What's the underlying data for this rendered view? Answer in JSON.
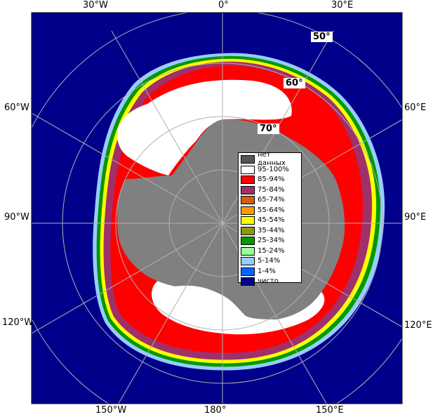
{
  "map": {
    "lon_labels_top": [
      "30°W",
      "0°",
      "30°E"
    ],
    "lon_labels_left": [
      "60°W",
      "90°W",
      "120°W"
    ],
    "lon_labels_right": [
      "60°E",
      "90°E",
      "120°E"
    ],
    "lon_labels_bottom": [
      "150°W",
      "180°",
      "150°E"
    ],
    "lat_labels": [
      "50°",
      "60°",
      "70°"
    ]
  },
  "legend": {
    "items": [
      {
        "label": "нет данных",
        "color": "#555555"
      },
      {
        "label": "95-100%",
        "color": "#ffffff"
      },
      {
        "label": "85-94%",
        "color": "#ff0000"
      },
      {
        "label": "75-84%",
        "color": "#a0306a"
      },
      {
        "label": "65-74%",
        "color": "#d4600a"
      },
      {
        "label": "55-64%",
        "color": "#ff9a00"
      },
      {
        "label": "45-54%",
        "color": "#ffff00"
      },
      {
        "label": "35-44%",
        "color": "#8a9a10"
      },
      {
        "label": "25-34%",
        "color": "#009900"
      },
      {
        "label": "15-24%",
        "color": "#99ff99"
      },
      {
        "label": "5-14%",
        "color": "#99ccff"
      },
      {
        "label": "1-4%",
        "color": "#0066ff"
      },
      {
        "label": "чисто",
        "color": "#00008b"
      }
    ]
  },
  "colors": {
    "ocean": "#00008b",
    "land": "#808080",
    "no_data": "#555555",
    "ice_full": "#ffffff",
    "ice_85": "#ff0000",
    "ice_75": "#a0306a",
    "grid": "#b0b0b0"
  }
}
